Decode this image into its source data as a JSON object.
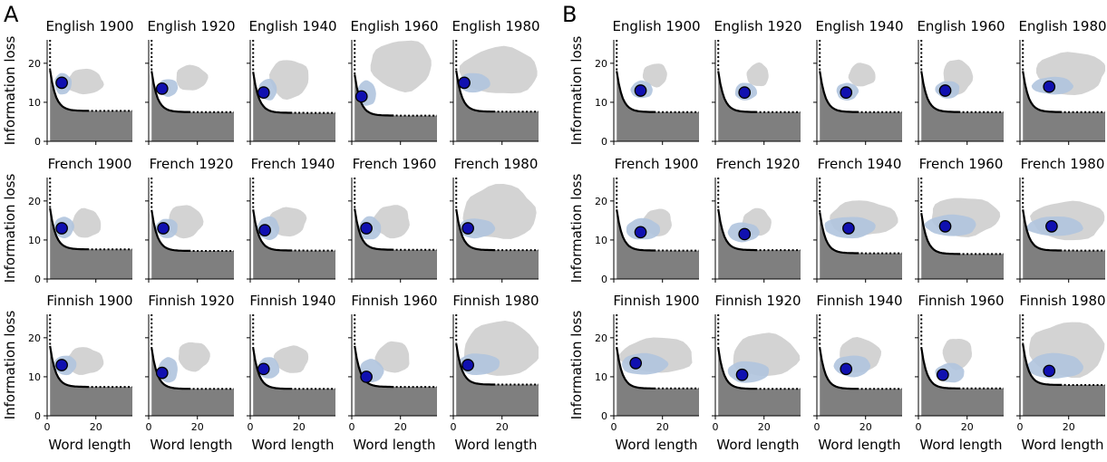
{
  "panels": [
    {
      "letter": "A"
    },
    {
      "letter": "B"
    }
  ],
  "colors": {
    "background": "#ffffff",
    "infeasible_region": "#7f7f7f",
    "frontier": "#000000",
    "cloud_all": "#d3d3d3",
    "cloud_attested": "#b0c4de",
    "observed_point": "#1010b0",
    "observed_edge": "#000000"
  },
  "chart_data": [
    {
      "type": "scatter",
      "panel": "A",
      "rows": [
        "English",
        "French",
        "Finnish"
      ],
      "cols": [
        "1900",
        "1920",
        "1940",
        "1960",
        "1980"
      ],
      "subplot_titles": [
        [
          "English 1900",
          "English 1920",
          "English 1940",
          "English 1960",
          "English 1980"
        ],
        [
          "French 1900",
          "French 1920",
          "French 1940",
          "French 1960",
          "French 1980"
        ],
        [
          "Finnish 1900",
          "Finnish 1920",
          "Finnish 1940",
          "Finnish 1960",
          "Finnish 1980"
        ]
      ],
      "xlabel": "Word length",
      "ylabel": "Information loss",
      "xlim": [
        0,
        35
      ],
      "ylim": [
        0,
        26
      ],
      "xticks": [
        0,
        20
      ],
      "yticks": [
        0,
        10,
        20
      ],
      "frontier_floor": [
        [
          7.8,
          7.5,
          7.3,
          6.6,
          7.6
        ],
        [
          7.6,
          7.2,
          7.3,
          7.5,
          7.4
        ],
        [
          7.4,
          6.9,
          6.9,
          7.4,
          8.0
        ]
      ],
      "points": [
        [
          {
            "x": 6,
            "y": 15
          },
          {
            "x": 5.5,
            "y": 13.5
          },
          {
            "x": 5.5,
            "y": 12.5
          },
          {
            "x": 4,
            "y": 11.5
          },
          {
            "x": 4.5,
            "y": 15
          }
        ],
        [
          {
            "x": 6,
            "y": 13
          },
          {
            "x": 6,
            "y": 13
          },
          {
            "x": 6,
            "y": 12.5
          },
          {
            "x": 6,
            "y": 13
          },
          {
            "x": 6,
            "y": 13
          }
        ],
        [
          {
            "x": 6,
            "y": 13
          },
          {
            "x": 5.5,
            "y": 11
          },
          {
            "x": 5.5,
            "y": 12
          },
          {
            "x": 6,
            "y": 10
          },
          {
            "x": 6,
            "y": 13
          }
        ]
      ],
      "clouds": [
        [
          {
            "all": {
              "x": [
                8,
                23
              ],
              "y": [
                12,
                18.5
              ]
            },
            "attested": {
              "x": [
                3,
                10
              ],
              "y": [
                12,
                17.5
              ]
            }
          },
          {
            "all": {
              "x": [
                11,
                24
              ],
              "y": [
                13,
                19.5
              ]
            },
            "attested": {
              "x": [
                4,
                12
              ],
              "y": [
                11.5,
                16
              ]
            }
          },
          {
            "all": {
              "x": [
                8,
                24
              ],
              "y": [
                11,
                21
              ]
            },
            "attested": {
              "x": [
                3.5,
                11
              ],
              "y": [
                10.5,
                16
              ]
            }
          },
          {
            "all": {
              "x": [
                8,
                33
              ],
              "y": [
                13,
                26
              ]
            },
            "attested": {
              "x": [
                2,
                10
              ],
              "y": [
                9,
                15.5
              ]
            }
          },
          {
            "all": {
              "x": [
                3,
                35
              ],
              "y": [
                12,
                24
              ]
            },
            "attested": {
              "x": [
                2,
                15
              ],
              "y": [
                12.5,
                17.5
              ]
            }
          }
        ],
        [
          {
            "all": {
              "x": [
                10,
                22
              ],
              "y": [
                10.5,
                18
              ]
            },
            "attested": {
              "x": [
                3,
                11
              ],
              "y": [
                10.5,
                16
              ]
            }
          },
          {
            "all": {
              "x": [
                8,
                22
              ],
              "y": [
                10.5,
                19
              ]
            },
            "attested": {
              "x": [
                3,
                12
              ],
              "y": [
                10.5,
                15.5
              ]
            }
          },
          {
            "all": {
              "x": [
                8,
                23
              ],
              "y": [
                11,
                18.5
              ]
            },
            "attested": {
              "x": [
                3,
                12
              ],
              "y": [
                10,
                16
              ]
            }
          },
          {
            "all": {
              "x": [
                9,
                24
              ],
              "y": [
                10.5,
                19
              ]
            },
            "attested": {
              "x": [
                3,
                12
              ],
              "y": [
                10,
                16
              ]
            }
          },
          {
            "all": {
              "x": [
                4,
                34
              ],
              "y": [
                10,
                24
              ]
            },
            "attested": {
              "x": [
                2,
                17
              ],
              "y": [
                10.5,
                15.5
              ]
            }
          }
        ],
        [
          {
            "all": {
              "x": [
                8,
                23
              ],
              "y": [
                10.5,
                17.5
              ]
            },
            "attested": {
              "x": [
                3,
                12
              ],
              "y": [
                10.5,
                15.5
              ]
            }
          },
          {
            "all": {
              "x": [
                12,
                25
              ],
              "y": [
                11.5,
                19
              ]
            },
            "attested": {
              "x": [
                4,
                12
              ],
              "y": [
                8.5,
                15
              ]
            }
          },
          {
            "all": {
              "x": [
                10,
                24
              ],
              "y": [
                11,
                18
              ]
            },
            "attested": {
              "x": [
                3,
                12
              ],
              "y": [
                9.5,
                15
              ]
            }
          },
          {
            "all": {
              "x": [
                10,
                24
              ],
              "y": [
                11,
                19
              ]
            },
            "attested": {
              "x": [
                3,
                13
              ],
              "y": [
                8.5,
                14.5
              ]
            }
          },
          {
            "all": {
              "x": [
                4,
                35
              ],
              "y": [
                10,
                24
              ]
            },
            "attested": {
              "x": [
                2,
                19
              ],
              "y": [
                10.5,
                16
              ]
            }
          }
        ]
      ]
    },
    {
      "type": "scatter",
      "panel": "B",
      "rows": [
        "English",
        "French",
        "Finnish"
      ],
      "cols": [
        "1900",
        "1920",
        "1940",
        "1960",
        "1980"
      ],
      "subplot_titles": [
        [
          "English 1900",
          "English 1920",
          "English 1940",
          "English 1960",
          "English 1980"
        ],
        [
          "French 1900",
          "French 1920",
          "French 1940",
          "French 1960",
          "French 1980"
        ],
        [
          "Finnish 1900",
          "Finnish 1920",
          "Finnish 1940",
          "Finnish 1960",
          "Finnish 1980"
        ]
      ],
      "xlabel": "Word length",
      "ylabel": "Information loss",
      "xlim": [
        0,
        35
      ],
      "ylim": [
        0,
        26
      ],
      "xticks": [
        0,
        20
      ],
      "yticks": [
        0,
        10,
        20
      ],
      "frontier_floor": [
        [
          7.5,
          7.5,
          7.5,
          7.5,
          7.5
        ],
        [
          7.3,
          7.4,
          6.6,
          6.4,
          7.3
        ],
        [
          7.0,
          6.9,
          6.9,
          7.0,
          7.9
        ]
      ],
      "points": [
        [
          {
            "x": 11,
            "y": 13
          },
          {
            "x": 12,
            "y": 12.5
          },
          {
            "x": 12,
            "y": 12.5
          },
          {
            "x": 11,
            "y": 13
          },
          {
            "x": 12,
            "y": 14
          }
        ],
        [
          {
            "x": 11,
            "y": 12
          },
          {
            "x": 12,
            "y": 11.5
          },
          {
            "x": 13,
            "y": 13
          },
          {
            "x": 11,
            "y": 13.5
          },
          {
            "x": 13,
            "y": 13.5
          }
        ],
        [
          {
            "x": 9,
            "y": 13.5
          },
          {
            "x": 11,
            "y": 10.5
          },
          {
            "x": 12,
            "y": 12
          },
          {
            "x": 10,
            "y": 10.5
          },
          {
            "x": 12,
            "y": 11.5
          }
        ]
      ],
      "clouds": [
        [
          {
            "all": {
              "x": [
                12,
                22
              ],
              "y": [
                14,
                20
              ]
            },
            "attested": {
              "x": [
                7,
                16
              ],
              "y": [
                11,
                15.5
              ]
            }
          },
          {
            "all": {
              "x": [
                13,
                22
              ],
              "y": [
                14,
                20
              ]
            },
            "attested": {
              "x": [
                8,
                17
              ],
              "y": [
                10.5,
                15
              ]
            }
          },
          {
            "all": {
              "x": [
                13,
                24
              ],
              "y": [
                14,
                20
              ]
            },
            "attested": {
              "x": [
                8,
                17
              ],
              "y": [
                10.5,
                15
              ]
            }
          },
          {
            "all": {
              "x": [
                10,
                22
              ],
              "y": [
                12,
                21
              ]
            },
            "attested": {
              "x": [
                7,
                17
              ],
              "y": [
                11,
                15.5
              ]
            }
          },
          {
            "all": {
              "x": [
                7,
                35
              ],
              "y": [
                12,
                23
              ]
            },
            "attested": {
              "x": [
                5,
                22
              ],
              "y": [
                12,
                16.5
              ]
            }
          }
        ],
        [
          {
            "all": {
              "x": [
                12,
                24
              ],
              "y": [
                11,
                18
              ]
            },
            "attested": {
              "x": [
                5,
                19
              ],
              "y": [
                10,
                15.5
              ]
            }
          },
          {
            "all": {
              "x": [
                11,
                23
              ],
              "y": [
                11,
                18
              ]
            },
            "attested": {
              "x": [
                5,
                18
              ],
              "y": [
                9.5,
                14.5
              ]
            }
          },
          {
            "all": {
              "x": [
                5,
                33
              ],
              "y": [
                11,
                20
              ]
            },
            "attested": {
              "x": [
                3,
                24
              ],
              "y": [
                10.5,
                16
              ]
            }
          },
          {
            "all": {
              "x": [
                5,
                33
              ],
              "y": [
                11,
                21
              ]
            },
            "attested": {
              "x": [
                3,
                24
              ],
              "y": [
                11,
                16.5
              ]
            }
          },
          {
            "all": {
              "x": [
                5,
                35
              ],
              "y": [
                10,
                20
              ]
            },
            "attested": {
              "x": [
                3,
                26
              ],
              "y": [
                11,
                16
              ]
            }
          }
        ],
        [
          {
            "all": {
              "x": [
                3,
                33
              ],
              "y": [
                11,
                20
              ]
            },
            "attested": {
              "x": [
                3,
                22
              ],
              "y": [
                10.5,
                16
              ]
            }
          },
          {
            "all": {
              "x": [
                7,
                34
              ],
              "y": [
                10,
                21
              ]
            },
            "attested": {
              "x": [
                5,
                22
              ],
              "y": [
                8.5,
                14
              ]
            }
          },
          {
            "all": {
              "x": [
                9,
                26
              ],
              "y": [
                11,
                20
              ]
            },
            "attested": {
              "x": [
                7,
                22
              ],
              "y": [
                10,
                15.5
              ]
            }
          },
          {
            "all": {
              "x": [
                10,
                22
              ],
              "y": [
                12,
                20
              ]
            },
            "attested": {
              "x": [
                7,
                19
              ],
              "y": [
                8.5,
                13.5
              ]
            }
          },
          {
            "all": {
              "x": [
                4,
                35
              ],
              "y": [
                10,
                24
              ]
            },
            "attested": {
              "x": [
                3,
                26
              ],
              "y": [
                9.5,
                16
              ]
            }
          }
        ]
      ]
    }
  ]
}
